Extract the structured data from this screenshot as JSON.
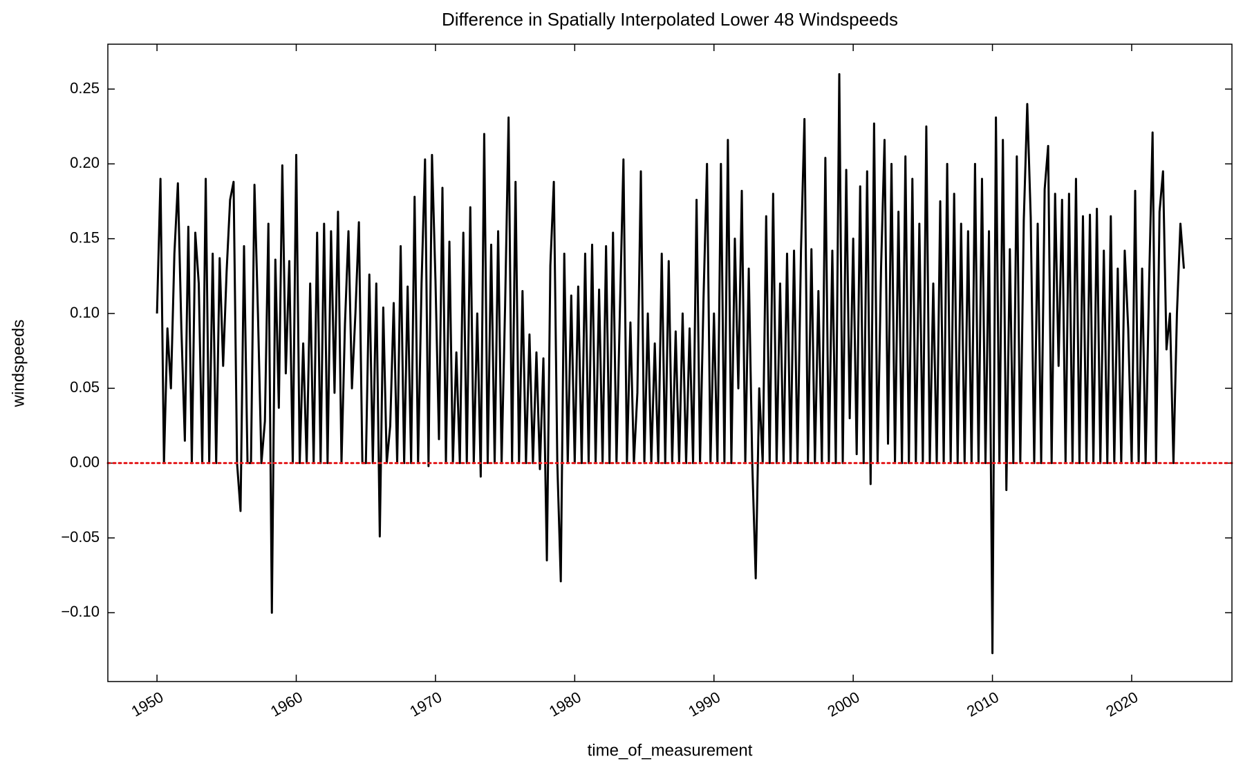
{
  "chart_data": {
    "type": "line",
    "title": "Difference in Spatially Interpolated Lower 48 Windspeeds",
    "xlabel": "time_of_measurement",
    "ylabel": "windspeeds",
    "xlim": [
      1946.47,
      2027.2
    ],
    "ylim": [
      -0.146,
      0.28
    ],
    "xticks": [
      1950,
      1960,
      1970,
      1980,
      1990,
      2000,
      2010,
      2020
    ],
    "yticks": [
      {
        "value": -0.1,
        "label": "−0.10"
      },
      {
        "value": -0.05,
        "label": "−0.05"
      },
      {
        "value": 0,
        "label": "0.00"
      },
      {
        "value": 0.05,
        "label": "0.05"
      },
      {
        "value": 0.1,
        "label": "0.10"
      },
      {
        "value": 0.15,
        "label": "0.15"
      },
      {
        "value": 0.2,
        "label": "0.20"
      },
      {
        "value": 0.25,
        "label": "0.25"
      }
    ],
    "hline": {
      "y": 0,
      "color": "#e41a1c"
    },
    "x": [
      1950,
      1950.25,
      1950.5,
      1950.75,
      1951,
      1951.25,
      1951.5,
      1951.75,
      1952,
      1952.25,
      1952.5,
      1952.75,
      1953,
      1953.25,
      1953.5,
      1953.75,
      1954,
      1954.25,
      1954.5,
      1954.75,
      1955,
      1955.25,
      1955.5,
      1955.75,
      1956,
      1956.25,
      1956.5,
      1956.75,
      1957,
      1957.25,
      1957.5,
      1957.75,
      1958,
      1958.25,
      1958.5,
      1958.75,
      1959,
      1959.25,
      1959.5,
      1959.75,
      1960,
      1960.25,
      1960.5,
      1960.75,
      1961,
      1961.25,
      1961.5,
      1961.75,
      1962,
      1962.25,
      1962.5,
      1962.75,
      1963,
      1963.25,
      1963.5,
      1963.75,
      1964,
      1964.25,
      1964.5,
      1964.75,
      1965,
      1965.25,
      1965.5,
      1965.75,
      1966,
      1966.25,
      1966.5,
      1966.75,
      1967,
      1967.25,
      1967.5,
      1967.75,
      1968,
      1968.25,
      1968.5,
      1968.75,
      1969,
      1969.25,
      1969.5,
      1969.75,
      1970,
      1970.25,
      1970.5,
      1970.75,
      1971,
      1971.25,
      1971.5,
      1971.75,
      1972,
      1972.25,
      1972.5,
      1972.75,
      1973,
      1973.25,
      1973.5,
      1973.75,
      1974,
      1974.25,
      1974.5,
      1974.75,
      1975,
      1975.25,
      1975.5,
      1975.75,
      1976,
      1976.25,
      1976.5,
      1976.75,
      1977,
      1977.25,
      1977.5,
      1977.75,
      1978,
      1978.25,
      1978.5,
      1978.75,
      1979,
      1979.25,
      1979.5,
      1979.75,
      1980,
      1980.25,
      1980.5,
      1980.75,
      1981,
      1981.25,
      1981.5,
      1981.75,
      1982,
      1982.25,
      1982.5,
      1982.75,
      1983,
      1983.25,
      1983.5,
      1983.75,
      1984,
      1984.25,
      1984.5,
      1984.75,
      1985,
      1985.25,
      1985.5,
      1985.75,
      1986,
      1986.25,
      1986.5,
      1986.75,
      1987,
      1987.25,
      1987.5,
      1987.75,
      1988,
      1988.25,
      1988.5,
      1988.75,
      1989,
      1989.25,
      1989.5,
      1989.75,
      1990,
      1990.25,
      1990.5,
      1990.75,
      1991,
      1991.25,
      1991.5,
      1991.75,
      1992,
      1992.25,
      1992.5,
      1992.75,
      1993,
      1993.25,
      1993.5,
      1993.75,
      1994,
      1994.25,
      1994.5,
      1994.75,
      1995,
      1995.25,
      1995.5,
      1995.75,
      1996,
      1996.25,
      1996.5,
      1996.75,
      1997,
      1997.25,
      1997.5,
      1997.75,
      1998,
      1998.25,
      1998.5,
      1998.75,
      1999,
      1999.25,
      1999.5,
      1999.75,
      2000,
      2000.25,
      2000.5,
      2000.75,
      2001,
      2001.25,
      2001.5,
      2001.75,
      2002,
      2002.25,
      2002.5,
      2002.75,
      2003,
      2003.25,
      2003.5,
      2003.75,
      2004,
      2004.25,
      2004.5,
      2004.75,
      2005,
      2005.25,
      2005.5,
      2005.75,
      2006,
      2006.25,
      2006.5,
      2006.75,
      2007,
      2007.25,
      2007.5,
      2007.75,
      2008,
      2008.25,
      2008.5,
      2008.75,
      2009,
      2009.25,
      2009.5,
      2009.75,
      2010,
      2010.25,
      2010.5,
      2010.75,
      2011,
      2011.25,
      2011.5,
      2011.75,
      2012,
      2012.25,
      2012.5,
      2012.75,
      2013,
      2013.25,
      2013.5,
      2013.75,
      2014,
      2014.25,
      2014.5,
      2014.75,
      2015,
      2015.25,
      2015.5,
      2015.75,
      2016,
      2016.25,
      2016.5,
      2016.75,
      2017,
      2017.25,
      2017.5,
      2017.75,
      2018,
      2018.25,
      2018.5,
      2018.75,
      2019,
      2019.25,
      2019.5,
      2019.75,
      2020,
      2020.25,
      2020.5,
      2020.75,
      2021,
      2021.25,
      2021.5,
      2021.75,
      2022,
      2022.25,
      2022.5,
      2022.75,
      2023,
      2023.25,
      2023.5,
      2023.75
    ],
    "series": [
      {
        "name": "windspeeds",
        "color": "#000000",
        "values": [
          0.1,
          0.19,
          0.0,
          0.09,
          0.05,
          0.14,
          0.187,
          0.09,
          0.015,
          0.158,
          0.0,
          0.154,
          0.12,
          0.0,
          0.19,
          0.0,
          0.14,
          0.0,
          0.137,
          0.065,
          0.128,
          0.176,
          0.188,
          0.0,
          -0.032,
          0.145,
          0.0,
          0.0,
          0.186,
          0.1,
          0.0,
          0.028,
          0.16,
          -0.1,
          0.136,
          0.037,
          0.199,
          0.06,
          0.135,
          0.0,
          0.206,
          0.0,
          0.08,
          0.0,
          0.12,
          0.0,
          0.154,
          0.0,
          0.16,
          0.0,
          0.155,
          0.047,
          0.168,
          0.0,
          0.093,
          0.155,
          0.05,
          0.1,
          0.161,
          0.0,
          0.0,
          0.126,
          0.0,
          0.12,
          -0.049,
          0.104,
          0.0,
          0.025,
          0.107,
          0.0,
          0.145,
          0.0,
          0.118,
          0.0,
          0.178,
          0.0,
          0.12,
          0.203,
          -0.002,
          0.206,
          0.122,
          0.016,
          0.184,
          0.0,
          0.148,
          0.0,
          0.074,
          0.0,
          0.154,
          0.0,
          0.171,
          0.0,
          0.1,
          -0.009,
          0.22,
          0.0,
          0.146,
          0.0,
          0.155,
          0.0,
          0.105,
          0.231,
          0.0,
          0.188,
          0.0,
          0.115,
          0.0,
          0.086,
          0.0,
          0.074,
          -0.004,
          0.07,
          -0.065,
          0.132,
          0.188,
          0.0,
          -0.079,
          0.14,
          0.0,
          0.112,
          0.0,
          0.118,
          0.0,
          0.14,
          0.0,
          0.146,
          0.0,
          0.116,
          0.0,
          0.145,
          0.0,
          0.154,
          0.0,
          0.104,
          0.203,
          0.0,
          0.094,
          0.0,
          0.047,
          0.195,
          0.0,
          0.1,
          0.0,
          0.08,
          0.0,
          0.14,
          0.0,
          0.135,
          0.0,
          0.088,
          0.0,
          0.1,
          0.0,
          0.09,
          0.0,
          0.176,
          0.0,
          0.11,
          0.2,
          0.0,
          0.1,
          0.0,
          0.2,
          0.0,
          0.216,
          0.0,
          0.15,
          0.05,
          0.182,
          0.0,
          0.13,
          0.0,
          -0.077,
          0.05,
          0.0,
          0.165,
          0.0,
          0.18,
          0.0,
          0.12,
          0.0,
          0.14,
          0.0,
          0.142,
          0.0,
          0.142,
          0.23,
          0.0,
          0.143,
          0.0,
          0.115,
          0.0,
          0.204,
          0.0,
          0.142,
          0.0,
          0.26,
          0.0,
          0.196,
          0.03,
          0.15,
          0.006,
          0.185,
          0.0,
          0.195,
          -0.014,
          0.227,
          0.0,
          0.13,
          0.216,
          0.013,
          0.2,
          0.0,
          0.168,
          0.0,
          0.205,
          0.0,
          0.19,
          0.0,
          0.16,
          0.0,
          0.225,
          0.0,
          0.12,
          0.0,
          0.175,
          0.0,
          0.2,
          0.0,
          0.18,
          0.0,
          0.16,
          0.0,
          0.155,
          0.0,
          0.2,
          0.0,
          0.19,
          0.0,
          0.155,
          -0.127,
          0.231,
          0.0,
          0.216,
          -0.018,
          0.143,
          0.0,
          0.205,
          0.0,
          0.162,
          0.24,
          0.164,
          0.0,
          0.16,
          0.0,
          0.183,
          0.212,
          0.0,
          0.18,
          0.065,
          0.176,
          0.0,
          0.18,
          0.0,
          0.19,
          0.0,
          0.165,
          0.0,
          0.166,
          0.0,
          0.17,
          0.0,
          0.142,
          0.0,
          0.165,
          0.0,
          0.13,
          0.0,
          0.142,
          0.09,
          0.0,
          0.182,
          0.0,
          0.13,
          0.0,
          0.12,
          0.221,
          0.0,
          0.168,
          0.195,
          0.076,
          0.1,
          0.0,
          0.1,
          0.16,
          0.13
        ]
      }
    ]
  }
}
